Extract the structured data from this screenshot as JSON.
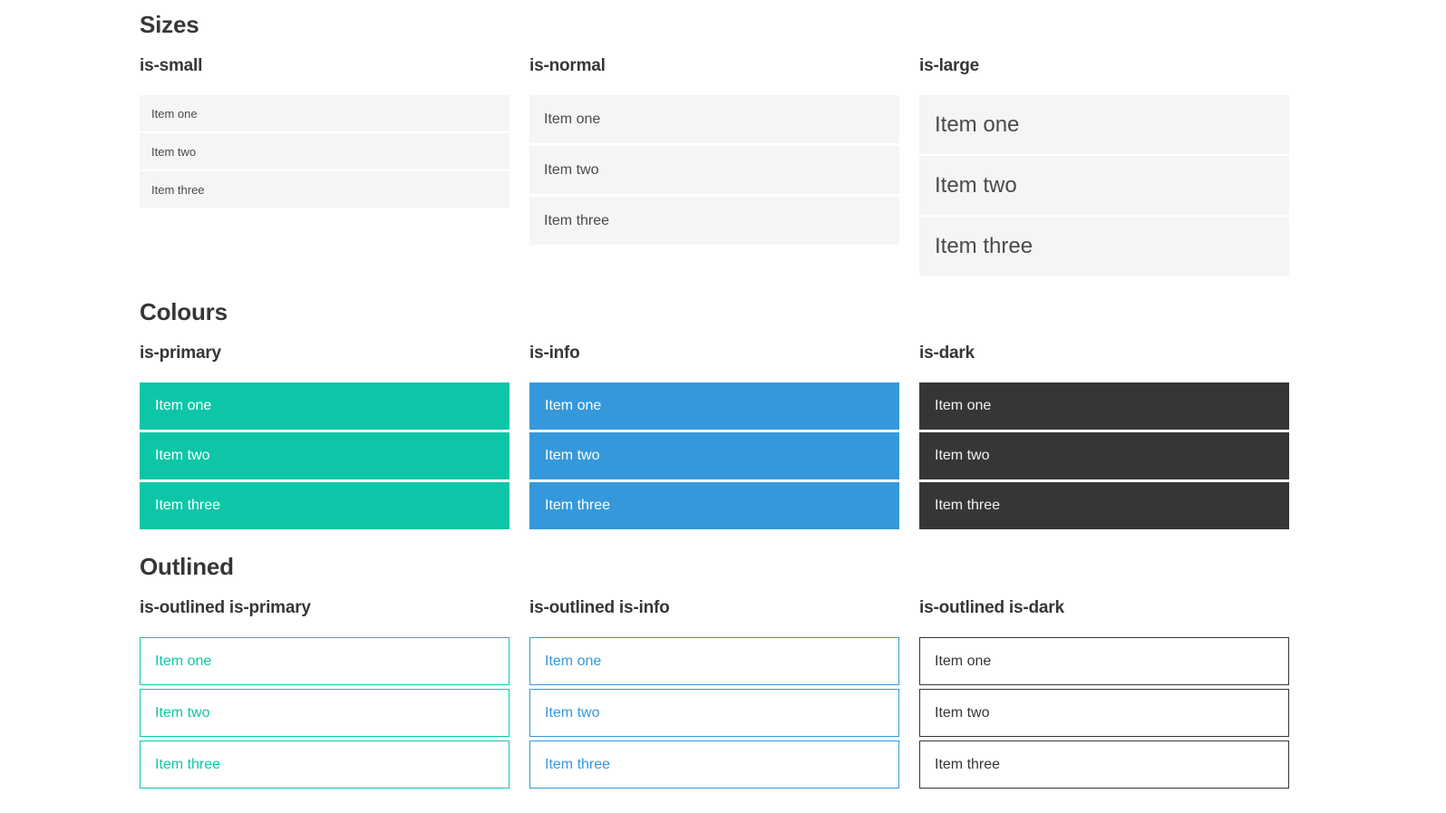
{
  "colors": {
    "primary": "#0dc6a8",
    "info": "#3598db",
    "dark": "#363636",
    "item-bg": "#f5f5f5",
    "item-text": "#4a4a4a",
    "heading": "#363636",
    "page-bg": "#ffffff"
  },
  "sections": [
    {
      "title": "Sizes",
      "groups": [
        {
          "heading": "is-small",
          "variant": "small",
          "items": [
            "Item one",
            "Item two",
            "Item three"
          ]
        },
        {
          "heading": "is-normal",
          "variant": "normal",
          "items": [
            "Item one",
            "Item two",
            "Item three"
          ]
        },
        {
          "heading": "is-large",
          "variant": "large",
          "items": [
            "Item one",
            "Item two",
            "Item three"
          ]
        }
      ]
    },
    {
      "title": "Colours",
      "groups": [
        {
          "heading": "is-primary",
          "variant": "primary",
          "items": [
            "Item one",
            "Item two",
            "Item three"
          ]
        },
        {
          "heading": "is-info",
          "variant": "info",
          "items": [
            "Item one",
            "Item two",
            "Item three"
          ]
        },
        {
          "heading": "is-dark",
          "variant": "dark",
          "items": [
            "Item one",
            "Item two",
            "Item three"
          ]
        }
      ]
    },
    {
      "title": "Outlined",
      "groups": [
        {
          "heading": "is-outlined is-primary",
          "variant": "outlined-primary",
          "items": [
            "Item one",
            "Item two",
            "Item three"
          ]
        },
        {
          "heading": "is-outlined is-info",
          "variant": "outlined-info",
          "items": [
            "Item one",
            "Item two",
            "Item three"
          ]
        },
        {
          "heading": "is-outlined is-dark",
          "variant": "outlined-dark",
          "items": [
            "Item one",
            "Item two",
            "Item three"
          ]
        }
      ]
    }
  ]
}
